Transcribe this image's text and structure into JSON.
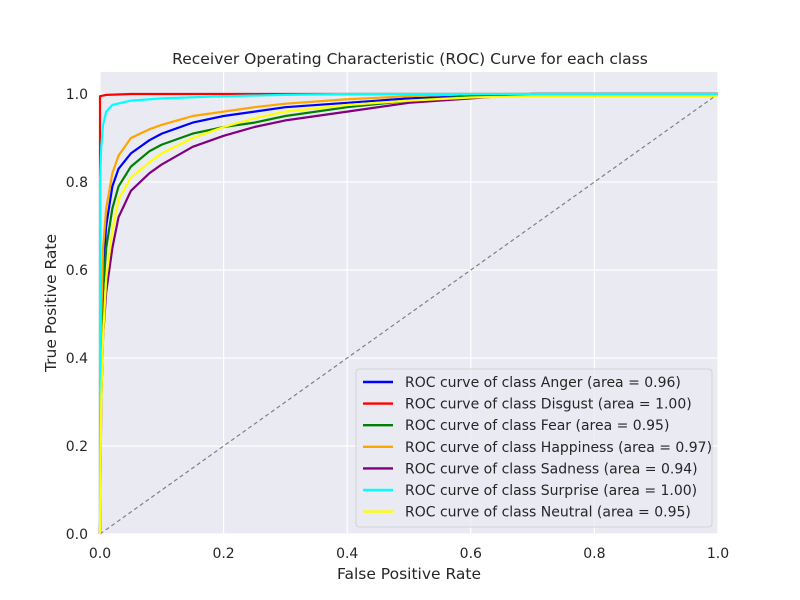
{
  "chart_data": {
    "type": "line",
    "title": "Receiver Operating Characteristic (ROC) Curve for each class",
    "xlabel": "False Positive Rate",
    "ylabel": "True Positive Rate",
    "xlim": [
      0.0,
      1.0
    ],
    "ylim": [
      0.0,
      1.05
    ],
    "xticks": [
      "0.0",
      "0.2",
      "0.4",
      "0.6",
      "0.8",
      "1.0"
    ],
    "yticks": [
      "0.0",
      "0.2",
      "0.4",
      "0.6",
      "0.8",
      "1.0"
    ],
    "grid": true,
    "legend_position": "lower-right",
    "background_color": "#eaeaf2",
    "grid_color": "#ffffff",
    "series": [
      {
        "name": "ROC curve of class Anger (area = 0.96)",
        "color": "#0000ff",
        "x": [
          0.0,
          0.002,
          0.005,
          0.01,
          0.02,
          0.03,
          0.05,
          0.08,
          0.1,
          0.15,
          0.2,
          0.25,
          0.3,
          0.4,
          0.5,
          0.6,
          0.7,
          0.8,
          1.0
        ],
        "y": [
          0.0,
          0.45,
          0.6,
          0.7,
          0.79,
          0.83,
          0.865,
          0.895,
          0.91,
          0.935,
          0.95,
          0.96,
          0.97,
          0.98,
          0.99,
          0.995,
          1.0,
          1.0,
          1.0
        ]
      },
      {
        "name": "ROC curve of class Disgust (area = 1.00)",
        "color": "#ff0000",
        "x": [
          0.0,
          0.0,
          0.01,
          0.05,
          1.0
        ],
        "y": [
          0.0,
          0.995,
          0.998,
          1.0,
          1.0
        ]
      },
      {
        "name": "ROC curve of class Fear (area = 0.95)",
        "color": "#008000",
        "x": [
          0.0,
          0.002,
          0.005,
          0.01,
          0.02,
          0.03,
          0.05,
          0.08,
          0.1,
          0.15,
          0.2,
          0.25,
          0.3,
          0.4,
          0.5,
          0.6,
          0.7,
          1.0
        ],
        "y": [
          0.0,
          0.4,
          0.55,
          0.65,
          0.74,
          0.79,
          0.835,
          0.87,
          0.885,
          0.91,
          0.925,
          0.935,
          0.95,
          0.97,
          0.985,
          0.995,
          1.0,
          1.0
        ]
      },
      {
        "name": "ROC curve of class Happiness (area = 0.97)",
        "color": "#ffa500",
        "x": [
          0.0,
          0.002,
          0.005,
          0.01,
          0.02,
          0.03,
          0.05,
          0.08,
          0.1,
          0.15,
          0.2,
          0.25,
          0.3,
          0.4,
          0.5,
          0.6,
          1.0
        ],
        "y": [
          0.0,
          0.5,
          0.65,
          0.74,
          0.82,
          0.86,
          0.9,
          0.92,
          0.93,
          0.95,
          0.96,
          0.97,
          0.978,
          0.988,
          0.995,
          1.0,
          1.0
        ]
      },
      {
        "name": "ROC curve of class Sadness (area = 0.94)",
        "color": "#800080",
        "x": [
          0.0,
          0.002,
          0.005,
          0.01,
          0.02,
          0.03,
          0.05,
          0.08,
          0.1,
          0.15,
          0.2,
          0.25,
          0.3,
          0.4,
          0.5,
          0.6,
          0.7,
          1.0
        ],
        "y": [
          0.0,
          0.3,
          0.45,
          0.55,
          0.65,
          0.72,
          0.78,
          0.82,
          0.84,
          0.88,
          0.905,
          0.925,
          0.94,
          0.96,
          0.98,
          0.99,
          1.0,
          1.0
        ]
      },
      {
        "name": "ROC curve of class Surprise (area = 1.00)",
        "color": "#00ffff",
        "x": [
          0.0,
          0.0,
          0.002,
          0.005,
          0.01,
          0.02,
          0.05,
          0.1,
          0.2,
          0.3,
          0.4,
          1.0
        ],
        "y": [
          0.0,
          0.8,
          0.88,
          0.93,
          0.96,
          0.975,
          0.985,
          0.99,
          0.995,
          0.998,
          1.0,
          1.0
        ]
      },
      {
        "name": "ROC curve of class Neutral (area = 0.95)",
        "color": "#ffff00",
        "x": [
          0.0,
          0.002,
          0.005,
          0.01,
          0.02,
          0.03,
          0.05,
          0.08,
          0.1,
          0.15,
          0.2,
          0.25,
          0.3,
          0.4,
          0.5,
          0.6,
          0.7,
          1.0
        ],
        "y": [
          0.0,
          0.3,
          0.45,
          0.58,
          0.69,
          0.76,
          0.81,
          0.845,
          0.865,
          0.9,
          0.925,
          0.945,
          0.96,
          0.975,
          0.985,
          0.992,
          0.995,
          0.995
        ]
      }
    ],
    "reference_line": {
      "x": [
        0.0,
        1.0
      ],
      "y": [
        0.0,
        1.0
      ],
      "color": "#808080",
      "style": "dashed"
    }
  }
}
